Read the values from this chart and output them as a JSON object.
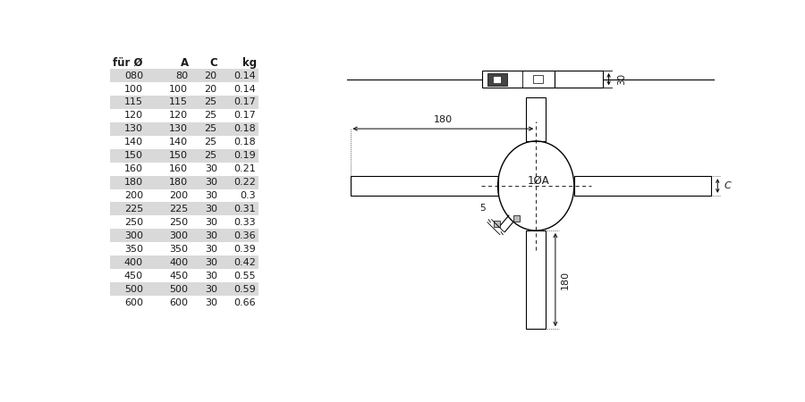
{
  "table_headers": [
    "für Ø",
    "A",
    "C",
    "kg"
  ],
  "table_rows": [
    [
      "080",
      "80",
      "20",
      "0.14"
    ],
    [
      "100",
      "100",
      "20",
      "0.14"
    ],
    [
      "115",
      "115",
      "25",
      "0.17"
    ],
    [
      "120",
      "120",
      "25",
      "0.17"
    ],
    [
      "130",
      "130",
      "25",
      "0.18"
    ],
    [
      "140",
      "140",
      "25",
      "0.18"
    ],
    [
      "150",
      "150",
      "25",
      "0.19"
    ],
    [
      "160",
      "160",
      "30",
      "0.21"
    ],
    [
      "180",
      "180",
      "30",
      "0.22"
    ],
    [
      "200",
      "200",
      "30",
      "0.3"
    ],
    [
      "225",
      "225",
      "30",
      "0.31"
    ],
    [
      "250",
      "250",
      "30",
      "0.33"
    ],
    [
      "300",
      "300",
      "30",
      "0.36"
    ],
    [
      "350",
      "350",
      "30",
      "0.39"
    ],
    [
      "400",
      "400",
      "30",
      "0.42"
    ],
    [
      "450",
      "450",
      "30",
      "0.55"
    ],
    [
      "500",
      "500",
      "30",
      "0.59"
    ],
    [
      "600",
      "600",
      "30",
      "0.66"
    ]
  ],
  "shaded_rows": [
    0,
    2,
    4,
    6,
    8,
    10,
    12,
    14,
    16
  ],
  "shade_color": "#d9d9d9",
  "bg_color": "#ffffff",
  "font_size_table": 8.0,
  "font_size_header": 8.5
}
